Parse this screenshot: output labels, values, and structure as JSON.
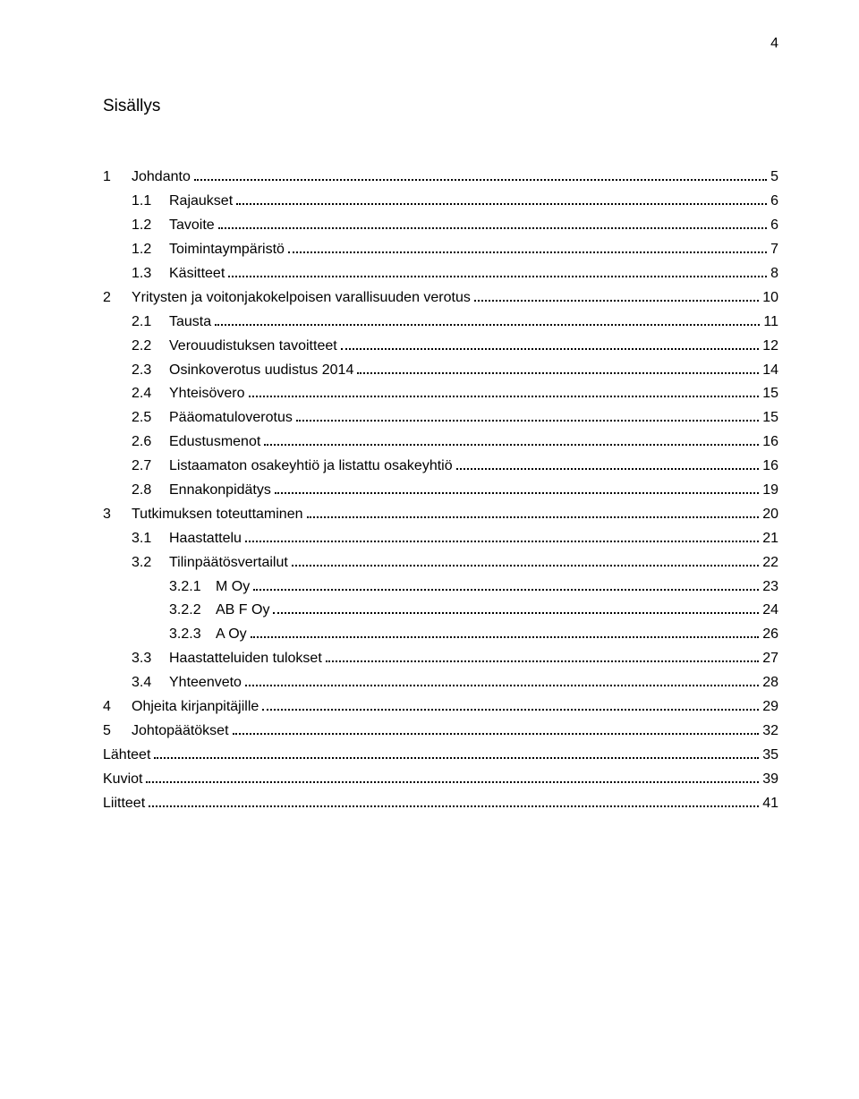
{
  "page_number": "4",
  "heading": "Sisällys",
  "font_color": "#000000",
  "background_color": "#ffffff",
  "toc": [
    {
      "level": 0,
      "num": "1",
      "title": "Johdanto",
      "page": "5"
    },
    {
      "level": 1,
      "num": "1.1",
      "title": "Rajaukset",
      "page": "6"
    },
    {
      "level": 1,
      "num": "1.2",
      "title": "Tavoite",
      "page": "6"
    },
    {
      "level": 1,
      "num": "1.2",
      "title": "Toimintaympäristö",
      "page": "7"
    },
    {
      "level": 1,
      "num": "1.3",
      "title": "Käsitteet",
      "page": "8"
    },
    {
      "level": 0,
      "num": "2",
      "title": "Yritysten ja voitonjakokelpoisen varallisuuden verotus",
      "page": "10"
    },
    {
      "level": 1,
      "num": "2.1",
      "title": "Tausta",
      "page": "11"
    },
    {
      "level": 1,
      "num": "2.2",
      "title": "Verouudistuksen tavoitteet",
      "page": "12"
    },
    {
      "level": 1,
      "num": "2.3",
      "title": "Osinkoverotus uudistus 2014",
      "page": "14"
    },
    {
      "level": 1,
      "num": "2.4",
      "title": "Yhteisövero",
      "page": "15"
    },
    {
      "level": 1,
      "num": "2.5",
      "title": "Pääomatuloverotus",
      "page": "15"
    },
    {
      "level": 1,
      "num": "2.6",
      "title": "Edustusmenot",
      "page": "16"
    },
    {
      "level": 1,
      "num": "2.7",
      "title": "Listaamaton osakeyhtiö ja listattu osakeyhtiö",
      "page": "16"
    },
    {
      "level": 1,
      "num": "2.8",
      "title": "Ennakonpidätys",
      "page": "19"
    },
    {
      "level": 0,
      "num": "3",
      "title": "Tutkimuksen toteuttaminen",
      "page": "20"
    },
    {
      "level": 1,
      "num": "3.1",
      "title": "Haastattelu",
      "page": "21"
    },
    {
      "level": 1,
      "num": "3.2",
      "title": "Tilinpäätösvertailut",
      "page": "22"
    },
    {
      "level": 2,
      "num": "3.2.1",
      "title": "M Oy",
      "page": "23"
    },
    {
      "level": 2,
      "num": "3.2.2",
      "title": "AB F Oy",
      "page": "24"
    },
    {
      "level": 2,
      "num": "3.2.3",
      "title": "A Oy",
      "page": "26"
    },
    {
      "level": 1,
      "num": "3.3",
      "title": "Haastatteluiden tulokset",
      "page": "27"
    },
    {
      "level": 1,
      "num": "3.4",
      "title": "Yhteenveto",
      "page": "28"
    },
    {
      "level": 0,
      "num": "4",
      "title": "Ohjeita kirjanpitäjille",
      "page": "29"
    },
    {
      "level": 0,
      "num": "5",
      "title": "Johtopäätökset",
      "page": "32"
    },
    {
      "level": 0,
      "num": "",
      "title": "Lähteet",
      "page": "35"
    },
    {
      "level": 0,
      "num": "",
      "title": "Kuviot",
      "page": "39"
    },
    {
      "level": 0,
      "num": "",
      "title": "Liitteet",
      "page": "41"
    }
  ]
}
